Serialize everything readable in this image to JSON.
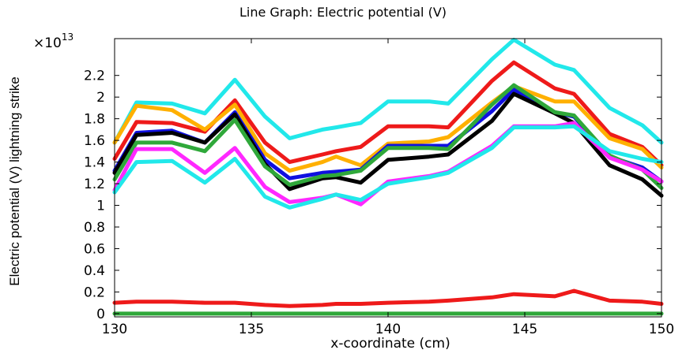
{
  "chart_data": {
    "type": "line",
    "title": "Line Graph: Electric potential (V)",
    "xlabel": "x-coordinate (cm)",
    "ylabel": "Electric potential (V)  lightning strike",
    "exponent_label": "×10",
    "exponent_power": "13",
    "xlim": [
      130,
      150
    ],
    "ylim": [
      -0.03,
      2.54
    ],
    "x_ticks": [
      130,
      135,
      140,
      145,
      150
    ],
    "x_tick_labels": [
      "130",
      "135",
      "140",
      "145",
      "150"
    ],
    "y_ticks": [
      0,
      0.2,
      0.4,
      0.6,
      0.8,
      1,
      1.2,
      1.4,
      1.6,
      1.8,
      2,
      2.2
    ],
    "y_tick_labels": [
      "0",
      "0.2",
      "0.4",
      "0.6",
      "0.8",
      "1",
      "1.2",
      "1.4",
      "1.6",
      "1.8",
      "2",
      "2.2"
    ],
    "x": [
      130,
      130.8,
      132.1,
      133.3,
      134.4,
      135.5,
      136.4,
      137.6,
      138.1,
      139,
      140,
      141.5,
      142.2,
      143.8,
      144.6,
      146.1,
      146.8,
      148.1,
      149.3,
      150
    ],
    "series": [
      {
        "name": "cyan-top",
        "color": "#21e8ea",
        "values": [
          1.58,
          1.95,
          1.94,
          1.85,
          2.16,
          1.82,
          1.62,
          1.7,
          1.72,
          1.76,
          1.96,
          1.96,
          1.94,
          2.35,
          2.53,
          2.3,
          2.25,
          1.9,
          1.74,
          1.58
        ]
      },
      {
        "name": "red",
        "color": "#ee1a1a",
        "values": [
          1.43,
          1.77,
          1.76,
          1.68,
          1.97,
          1.58,
          1.4,
          1.47,
          1.5,
          1.54,
          1.73,
          1.73,
          1.72,
          2.15,
          2.32,
          2.08,
          2.03,
          1.66,
          1.54,
          1.37
        ]
      },
      {
        "name": "orange",
        "color": "#ffb000",
        "values": [
          1.58,
          1.92,
          1.88,
          1.7,
          1.93,
          1.48,
          1.32,
          1.4,
          1.45,
          1.37,
          1.57,
          1.59,
          1.63,
          1.95,
          2.1,
          1.96,
          1.96,
          1.62,
          1.52,
          1.35
        ]
      },
      {
        "name": "blue",
        "color": "#1010e0",
        "values": [
          1.32,
          1.67,
          1.69,
          1.58,
          1.86,
          1.42,
          1.25,
          1.3,
          1.31,
          1.33,
          1.55,
          1.55,
          1.55,
          1.87,
          2.07,
          1.86,
          1.82,
          1.45,
          1.35,
          1.22
        ]
      },
      {
        "name": "black",
        "color": "#000000",
        "values": [
          1.3,
          1.65,
          1.67,
          1.58,
          1.84,
          1.38,
          1.15,
          1.25,
          1.26,
          1.21,
          1.42,
          1.45,
          1.47,
          1.78,
          2.03,
          1.85,
          1.76,
          1.37,
          1.24,
          1.09
        ]
      },
      {
        "name": "green",
        "color": "#2fa83a",
        "values": [
          1.24,
          1.58,
          1.58,
          1.5,
          1.79,
          1.36,
          1.19,
          1.27,
          1.28,
          1.32,
          1.53,
          1.53,
          1.52,
          1.93,
          2.11,
          1.86,
          1.83,
          1.46,
          1.33,
          1.16
        ]
      },
      {
        "name": "magenta",
        "color": "#ff28ff",
        "values": [
          1.14,
          1.52,
          1.52,
          1.3,
          1.53,
          1.17,
          1.03,
          1.07,
          1.1,
          1.01,
          1.22,
          1.27,
          1.31,
          1.55,
          1.73,
          1.73,
          1.76,
          1.44,
          1.33,
          1.22
        ]
      },
      {
        "name": "cyan-low",
        "color": "#21e8ea",
        "values": [
          1.12,
          1.4,
          1.41,
          1.21,
          1.43,
          1.08,
          0.98,
          1.06,
          1.1,
          1.05,
          1.2,
          1.26,
          1.3,
          1.53,
          1.72,
          1.72,
          1.73,
          1.5,
          1.43,
          1.4
        ]
      },
      {
        "name": "red-low",
        "color": "#ee1a1a",
        "values": [
          0.1,
          0.11,
          0.11,
          0.1,
          0.1,
          0.08,
          0.07,
          0.08,
          0.09,
          0.09,
          0.1,
          0.11,
          0.12,
          0.15,
          0.18,
          0.16,
          0.21,
          0.12,
          0.11,
          0.09
        ]
      },
      {
        "name": "green-zero",
        "color": "#2fa83a",
        "values": [
          0.0,
          0.0,
          0.0,
          0.0,
          0.0,
          0.0,
          0.0,
          0.0,
          0.0,
          0.0,
          0.0,
          0.0,
          0.0,
          0.0,
          0.0,
          0.0,
          0.0,
          0.0,
          0.0,
          0.0
        ]
      }
    ],
    "grid": false,
    "legend": "none"
  }
}
